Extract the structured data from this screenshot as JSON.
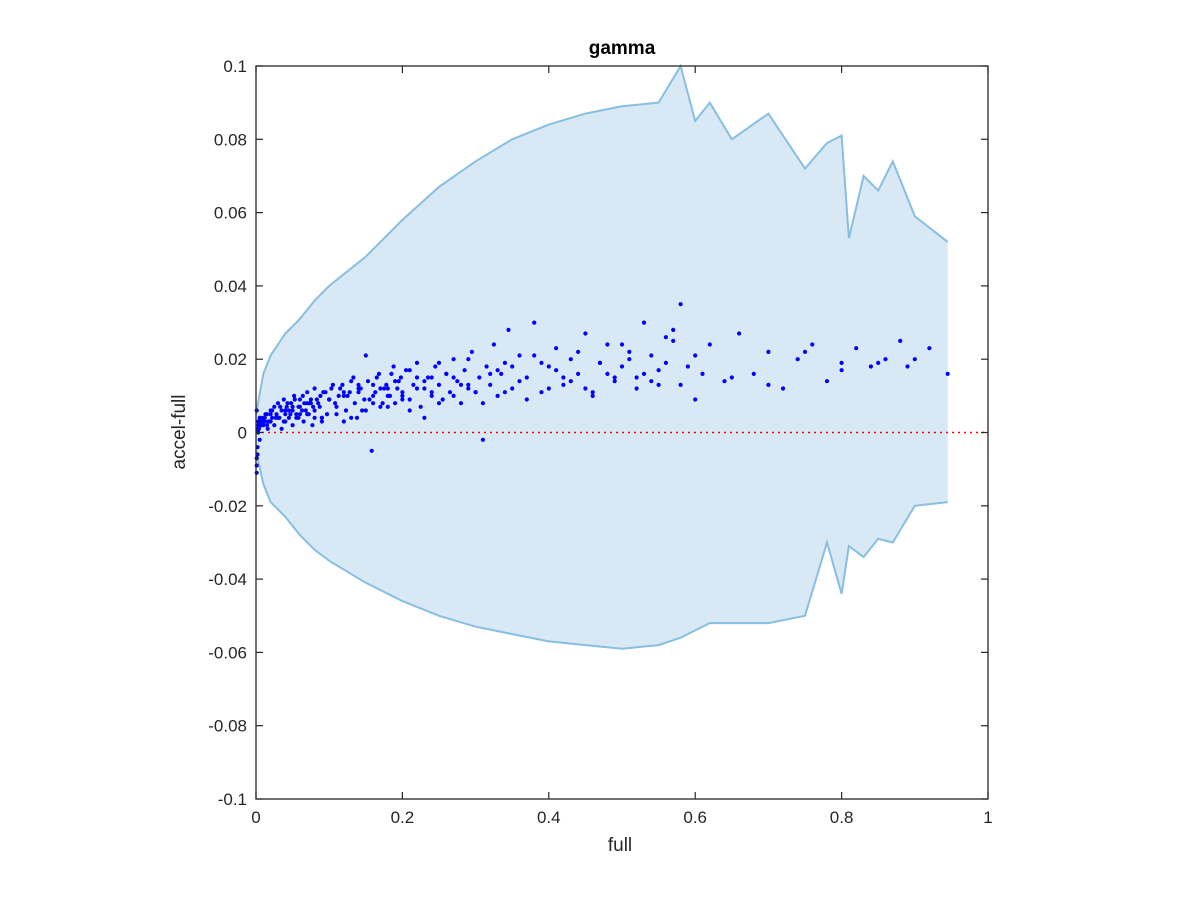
{
  "chart_data": {
    "type": "scatter",
    "title": "gamma",
    "xlabel": "full",
    "ylabel": "accel-full",
    "xlim": [
      0,
      1
    ],
    "ylim": [
      -0.1,
      0.1
    ],
    "x_ticks": [
      0,
      0.2,
      0.4,
      0.6,
      0.8,
      1
    ],
    "x_tick_labels": [
      "0",
      "0.2",
      "0.4",
      "0.6",
      "0.8",
      "1"
    ],
    "y_ticks": [
      -0.1,
      -0.08,
      -0.06,
      -0.04,
      -0.02,
      0,
      0.02,
      0.04,
      0.06,
      0.08,
      0.1
    ],
    "y_tick_labels": [
      "-0.1",
      "-0.08",
      "-0.06",
      "-0.04",
      "-0.02",
      "0",
      "0.02",
      "0.04",
      "0.06",
      "0.08",
      "0.1"
    ],
    "grid": false,
    "colors": {
      "band_fill": "#d9e8f5",
      "band_edge": "#88bfe0",
      "points": "#0000ff",
      "zero_line": "#ff0000",
      "axes": "#262626"
    },
    "envelope": {
      "x": [
        0,
        0.01,
        0.02,
        0.04,
        0.06,
        0.08,
        0.1,
        0.15,
        0.2,
        0.25,
        0.3,
        0.35,
        0.4,
        0.45,
        0.5,
        0.55,
        0.58,
        0.6,
        0.62,
        0.65,
        0.7,
        0.75,
        0.78,
        0.8,
        0.81,
        0.83,
        0.85,
        0.87,
        0.9,
        0.945
      ],
      "upper": [
        0.005,
        0.016,
        0.021,
        0.027,
        0.031,
        0.036,
        0.04,
        0.048,
        0.058,
        0.067,
        0.074,
        0.08,
        0.084,
        0.087,
        0.089,
        0.09,
        0.1,
        0.085,
        0.09,
        0.08,
        0.087,
        0.072,
        0.079,
        0.081,
        0.053,
        0.07,
        0.066,
        0.074,
        0.059,
        0.052
      ],
      "lower": [
        -0.005,
        -0.014,
        -0.019,
        -0.023,
        -0.028,
        -0.032,
        -0.035,
        -0.041,
        -0.046,
        -0.05,
        -0.053,
        -0.055,
        -0.057,
        -0.058,
        -0.059,
        -0.058,
        -0.056,
        -0.054,
        -0.052,
        -0.052,
        -0.052,
        -0.05,
        -0.03,
        -0.044,
        -0.031,
        -0.034,
        -0.029,
        -0.03,
        -0.02,
        -0.019
      ]
    },
    "series": [
      {
        "x": [
          0.001,
          0.002,
          0.003,
          0.004,
          0.005,
          0.006,
          0.008,
          0.01,
          0.012,
          0.015,
          0.018,
          0.02,
          0.022,
          0.025,
          0.028,
          0.03,
          0.032,
          0.035,
          0.038,
          0.04,
          0.042,
          0.045,
          0.048,
          0.05,
          0.052,
          0.055,
          0.058,
          0.06,
          0.063,
          0.066,
          0.07,
          0.072,
          0.075,
          0.078,
          0.08,
          0.085,
          0.088,
          0.09,
          0.095,
          0.1,
          0.105,
          0.11,
          0.115,
          0.12,
          0.125,
          0.13,
          0.135,
          0.14,
          0.145,
          0.15,
          0.155,
          0.16,
          0.165,
          0.17,
          0.175,
          0.18,
          0.185,
          0.19,
          0.195,
          0.2,
          0.205,
          0.21,
          0.215,
          0.22,
          0.225,
          0.23,
          0.235,
          0.24,
          0.245,
          0.25,
          0.255,
          0.26,
          0.265,
          0.27,
          0.275,
          0.28,
          0.285,
          0.29,
          0.295,
          0.3,
          0.305,
          0.31,
          0.315,
          0.32,
          0.325,
          0.33,
          0.335,
          0.34,
          0.345,
          0.35,
          0.36,
          0.37,
          0.38,
          0.39,
          0.4,
          0.41,
          0.42,
          0.43,
          0.44,
          0.45,
          0.46,
          0.47,
          0.48,
          0.49,
          0.5,
          0.51,
          0.52,
          0.53,
          0.54,
          0.55,
          0.56,
          0.57,
          0.58,
          0.59,
          0.6,
          0.62,
          0.64,
          0.66,
          0.68,
          0.7,
          0.72,
          0.74,
          0.76,
          0.78,
          0.8,
          0.82,
          0.84,
          0.86,
          0.88,
          0.9,
          0.92,
          0.945,
          0.001,
          0.002,
          0.004,
          0.006,
          0.01,
          0.015,
          0.02,
          0.03,
          0.04,
          0.05,
          0.06,
          0.07,
          0.08,
          0.09,
          0.1,
          0.12,
          0.14,
          0.16,
          0.18,
          0.2,
          0.22,
          0.24,
          0.26,
          0.28,
          0.3,
          0.33,
          0.36,
          0.39,
          0.42,
          0.45,
          0.48,
          0.51,
          0.54,
          0.57,
          0.6,
          0.65,
          0.7,
          0.75,
          0.8,
          0.85,
          0.89,
          0.001,
          0.003,
          0.005,
          0.008,
          0.012,
          0.016,
          0.02,
          0.025,
          0.03,
          0.035,
          0.04,
          0.045,
          0.05,
          0.055,
          0.06,
          0.065,
          0.07,
          0.075,
          0.08,
          0.09,
          0.1,
          0.11,
          0.12,
          0.13,
          0.14,
          0.15,
          0.16,
          0.17,
          0.18,
          0.19,
          0.2,
          0.21,
          0.22,
          0.23,
          0.24,
          0.25,
          0.27,
          0.29,
          0.31,
          0.34,
          0.37,
          0.4,
          0.43,
          0.46,
          0.49,
          0.52,
          0.55,
          0.58,
          0.61,
          0.001,
          0.002,
          0.003,
          0.004,
          0.006,
          0.009,
          0.013,
          0.017,
          0.022,
          0.027,
          0.033,
          0.038,
          0.043,
          0.047,
          0.053,
          0.058,
          0.064,
          0.068,
          0.073,
          0.077,
          0.083,
          0.087,
          0.092,
          0.097,
          0.103,
          0.108,
          0.113,
          0.118,
          0.123,
          0.128,
          0.133,
          0.138,
          0.143,
          0.148,
          0.153,
          0.158,
          0.163,
          0.168,
          0.173,
          0.178,
          0.183,
          0.188,
          0.193,
          0.198,
          0.21,
          0.23,
          0.25,
          0.27,
          0.29,
          0.32,
          0.35,
          0.38,
          0.41,
          0.44,
          0.47,
          0.5,
          0.53,
          0.56
        ],
        "y": [
          -0.011,
          -0.006,
          0.003,
          0.001,
          0.004,
          0.002,
          0.003,
          0.002,
          0.004,
          0.005,
          0.003,
          0.006,
          0.004,
          0.007,
          0.005,
          0.008,
          0.004,
          0.006,
          0.009,
          0.005,
          0.007,
          0.004,
          0.008,
          0.006,
          0.01,
          0.005,
          0.007,
          0.009,
          0.006,
          0.008,
          0.011,
          0.005,
          0.009,
          0.007,
          0.012,
          0.008,
          0.01,
          0.004,
          0.011,
          0.009,
          0.013,
          0.007,
          0.012,
          0.003,
          0.01,
          0.014,
          0.008,
          0.011,
          0.006,
          0.021,
          0.009,
          0.013,
          0.015,
          0.007,
          0.012,
          0.01,
          0.016,
          0.008,
          0.014,
          0.011,
          0.017,
          0.009,
          0.013,
          0.019,
          0.007,
          0.012,
          0.015,
          0.01,
          0.018,
          0.013,
          0.009,
          0.016,
          0.011,
          0.02,
          0.014,
          0.008,
          0.017,
          0.012,
          0.022,
          0.011,
          0.015,
          -0.002,
          0.018,
          0.013,
          0.024,
          0.01,
          0.016,
          0.019,
          0.028,
          0.012,
          0.021,
          0.015,
          0.03,
          0.011,
          0.018,
          0.023,
          0.013,
          0.02,
          0.016,
          0.027,
          0.011,
          0.019,
          0.024,
          0.014,
          0.018,
          0.022,
          0.015,
          0.03,
          0.021,
          0.013,
          0.019,
          0.025,
          0.035,
          0.018,
          0.021,
          0.024,
          0.014,
          0.027,
          0.016,
          0.022,
          0.012,
          0.02,
          0.024,
          0.014,
          0.019,
          0.023,
          0.018,
          0.02,
          0.025,
          0.02,
          0.023,
          0.016,
          0.006,
          0.001,
          0.003,
          0.002,
          0.004,
          0.002,
          0.005,
          0.004,
          0.006,
          0.007,
          0.005,
          0.008,
          0.006,
          0.004,
          0.009,
          0.01,
          0.012,
          0.008,
          0.012,
          0.01,
          0.015,
          0.011,
          0.016,
          0.013,
          0.011,
          0.017,
          0.014,
          0.019,
          0.015,
          0.012,
          0.016,
          0.02,
          0.014,
          0.028,
          0.009,
          0.015,
          0.013,
          0.022,
          0.017,
          0.019,
          0.018,
          -0.009,
          0,
          -0.002,
          0.002,
          0.003,
          0.001,
          0.003,
          0.002,
          0.004,
          0.001,
          0.003,
          0.006,
          0.002,
          0.004,
          0.007,
          0.003,
          0.005,
          0.008,
          0.004,
          0.003,
          0.009,
          0.005,
          0.011,
          0.004,
          0.013,
          0.006,
          0.01,
          0.012,
          0.007,
          0.014,
          0.009,
          0.006,
          0.012,
          0.004,
          0.015,
          0.008,
          0.01,
          0.013,
          0.008,
          0.011,
          0.009,
          0.012,
          0.014,
          0.01,
          0.015,
          0.012,
          0.017,
          0.013,
          0.016,
          -0.007,
          -0.004,
          0.002,
          0.001,
          0.004,
          0.003,
          0.005,
          0.003,
          0.006,
          0.004,
          0.007,
          0.003,
          0.008,
          0.005,
          0.009,
          0.004,
          0.01,
          0.006,
          0.008,
          0.002,
          0.009,
          0.007,
          0.011,
          0.005,
          0.012,
          0.008,
          0.01,
          0.013,
          0.006,
          0.011,
          0.015,
          0.004,
          0.012,
          0.009,
          0.014,
          -0.005,
          0.011,
          0.016,
          0.008,
          0.013,
          0.01,
          0.018,
          0.012,
          0.015,
          0.017,
          0.014,
          0.019,
          0.015,
          0.02,
          0.016,
          0.018,
          0.021,
          0.017,
          0.022,
          0.019,
          0.024,
          0.016,
          0.026
        ]
      }
    ],
    "reference_line": {
      "y": 0
    }
  }
}
